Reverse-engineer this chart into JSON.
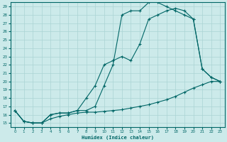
{
  "xlabel": "Humidex (Indice chaleur)",
  "xlim": [
    0,
    23
  ],
  "ylim": [
    15,
    29
  ],
  "yticks": [
    15,
    16,
    17,
    18,
    19,
    20,
    21,
    22,
    23,
    24,
    25,
    26,
    27,
    28,
    29
  ],
  "xticks": [
    0,
    1,
    2,
    3,
    4,
    5,
    6,
    7,
    8,
    9,
    10,
    11,
    12,
    13,
    14,
    15,
    16,
    17,
    18,
    19,
    20,
    21,
    22,
    23
  ],
  "bg_color": "#cceaea",
  "grid_color": "#aad4d4",
  "line_color": "#006666",
  "curve1_x": [
    0,
    1,
    2,
    3,
    4,
    5,
    6,
    7,
    8,
    9,
    10,
    11,
    12,
    13,
    14,
    15,
    16,
    17,
    18,
    19,
    20,
    21,
    22,
    23
  ],
  "curve1_y": [
    16.5,
    15.2,
    15.0,
    15.0,
    15.5,
    15.8,
    16.0,
    16.2,
    16.3,
    16.3,
    16.4,
    16.5,
    16.6,
    16.8,
    17.0,
    17.2,
    17.5,
    17.8,
    18.2,
    18.7,
    19.2,
    19.6,
    20.0,
    20.0
  ],
  "curve2_x": [
    0,
    1,
    2,
    3,
    4,
    5,
    6,
    7,
    8,
    9,
    10,
    11,
    12,
    13,
    14,
    15,
    16,
    17,
    18,
    19,
    20,
    21,
    22,
    23
  ],
  "curve2_y": [
    16.5,
    15.2,
    15.0,
    15.0,
    16.0,
    16.2,
    16.2,
    16.5,
    18.0,
    19.5,
    22.0,
    22.5,
    23.0,
    22.5,
    24.5,
    27.5,
    28.0,
    28.5,
    28.8,
    28.5,
    27.5,
    21.5,
    20.5,
    20.0
  ],
  "curve3_x": [
    0,
    1,
    2,
    3,
    4,
    5,
    6,
    7,
    8,
    9,
    10,
    11,
    12,
    13,
    14,
    15,
    16,
    17,
    18,
    19,
    20,
    21,
    22,
    23
  ],
  "curve3_y": [
    16.5,
    15.2,
    15.0,
    15.0,
    16.0,
    16.2,
    16.2,
    16.5,
    16.5,
    17.0,
    19.5,
    22.0,
    28.0,
    28.5,
    28.5,
    29.5,
    29.5,
    29.0,
    28.5,
    28.0,
    27.5,
    21.5,
    20.5,
    20.0
  ]
}
